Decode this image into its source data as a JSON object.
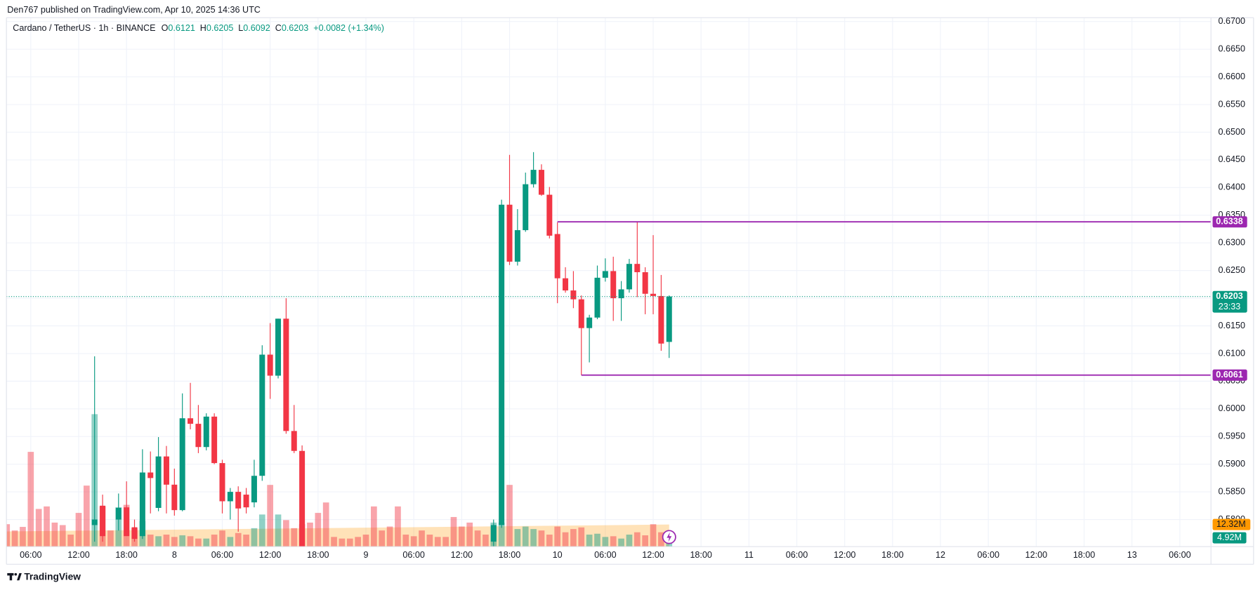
{
  "header": {
    "published": "Den767 published on TradingView.com, Apr 10, 2025 14:36 UTC"
  },
  "footer": {
    "brand": "TradingView"
  },
  "chart_data": {
    "type": "candlestick",
    "legend": {
      "symbol": "Cardano / TetherUS · 1h · BINANCE",
      "letters": [
        "O",
        "H",
        "L",
        "C"
      ],
      "change": "+0.0082 (+1.34%)"
    },
    "up_color": "#089981",
    "down_color": "#f23645",
    "xlim": [
      2.95,
      153.9
    ],
    "xticks": [
      {
        "value": 6,
        "label": "06:00"
      },
      {
        "value": 12,
        "label": "12:00"
      },
      {
        "value": 18,
        "label": "18:00"
      },
      {
        "value": 24,
        "label": "8"
      },
      {
        "value": 30,
        "label": "06:00"
      },
      {
        "value": 36,
        "label": "12:00"
      },
      {
        "value": 42,
        "label": "18:00"
      },
      {
        "value": 48,
        "label": "9"
      },
      {
        "value": 54,
        "label": "06:00"
      },
      {
        "value": 60,
        "label": "12:00"
      },
      {
        "value": 66,
        "label": "18:00"
      },
      {
        "value": 72,
        "label": "10"
      },
      {
        "value": 78,
        "label": "06:00"
      },
      {
        "value": 84,
        "label": "12:00"
      },
      {
        "value": 90,
        "label": "18:00"
      },
      {
        "value": 96,
        "label": "11"
      },
      {
        "value": 102,
        "label": "06:00"
      },
      {
        "value": 108,
        "label": "12:00"
      },
      {
        "value": 114,
        "label": "18:00"
      },
      {
        "value": 120,
        "label": "12"
      },
      {
        "value": 126,
        "label": "06:00"
      },
      {
        "value": 132,
        "label": "12:00"
      },
      {
        "value": 138,
        "label": "18:00"
      },
      {
        "value": 144,
        "label": "13"
      },
      {
        "value": 150,
        "label": "06:00"
      }
    ],
    "ylim": [
      0.5751,
      0.6707
    ],
    "yticks": [
      {
        "value": 0.58,
        "label": "0.5800"
      },
      {
        "value": 0.585,
        "label": "0.5850"
      },
      {
        "value": 0.59,
        "label": "0.5900"
      },
      {
        "value": 0.595,
        "label": "0.5950"
      },
      {
        "value": 0.6,
        "label": "0.6000"
      },
      {
        "value": 0.605,
        "label": "0.6050"
      },
      {
        "value": 0.61,
        "label": "0.6100"
      },
      {
        "value": 0.615,
        "label": "0.6150"
      },
      {
        "value": 0.62,
        "label": "0.6200"
      },
      {
        "value": 0.625,
        "label": "0.6250"
      },
      {
        "value": 0.63,
        "label": "0.6300"
      },
      {
        "value": 0.635,
        "label": "0.6350"
      },
      {
        "value": 0.64,
        "label": "0.6400"
      },
      {
        "value": 0.645,
        "label": "0.6450"
      },
      {
        "value": 0.65,
        "label": "0.6500"
      },
      {
        "value": 0.655,
        "label": "0.6550"
      },
      {
        "value": 0.66,
        "label": "0.6600"
      },
      {
        "value": 0.665,
        "label": "0.6650"
      },
      {
        "value": 0.67,
        "label": "0.6700"
      }
    ],
    "y2lim": [
      0,
      294.7
    ],
    "grid": true,
    "candles": {
      "x": [
        14,
        15,
        17,
        18,
        19,
        20,
        21,
        22,
        23,
        24,
        25,
        26,
        27,
        28,
        29,
        30,
        31,
        32,
        33,
        34,
        35,
        36,
        37,
        38,
        39,
        40,
        64,
        65,
        66,
        67,
        68,
        69,
        70,
        71,
        72,
        73,
        74,
        75,
        76,
        77,
        78,
        79,
        80,
        81,
        82,
        83,
        84,
        85,
        86
      ],
      "open": [
        0.579,
        0.5825,
        0.58,
        0.5822,
        0.5786,
        0.577,
        0.5885,
        0.5821,
        0.5914,
        0.5863,
        0.5817,
        0.5983,
        0.5973,
        0.5931,
        0.5986,
        0.5902,
        0.5833,
        0.585,
        0.5845,
        0.5831,
        0.5879,
        0.6098,
        0.606,
        0.6163,
        0.596,
        0.5924,
        0.576,
        0.579,
        0.6369,
        0.6266,
        0.6323,
        0.6406,
        0.6432,
        0.6387,
        0.6316,
        0.6236,
        0.6214,
        0.6198,
        0.6146,
        0.6165,
        0.6237,
        0.6249,
        0.62,
        0.6216,
        0.6262,
        0.6247,
        0.6208,
        0.6204,
        0.6121
      ],
      "high": [
        0.6095,
        0.5845,
        0.5847,
        0.5869,
        0.58,
        0.5927,
        0.5923,
        0.5949,
        0.5933,
        0.5892,
        0.6028,
        0.6047,
        0.6007,
        0.5992,
        0.5992,
        0.5908,
        0.5857,
        0.586,
        0.5857,
        0.5908,
        0.6115,
        0.6155,
        0.6163,
        0.62,
        0.6007,
        0.5934,
        0.58,
        0.6378,
        0.6459,
        0.6361,
        0.6427,
        0.6464,
        0.6442,
        0.6401,
        0.6337,
        0.6256,
        0.6249,
        0.6205,
        0.617,
        0.6259,
        0.6272,
        0.6275,
        0.6231,
        0.6271,
        0.6338,
        0.6256,
        0.6314,
        0.6242,
        0.6205
      ],
      "low": [
        0.576,
        0.576,
        0.578,
        0.579,
        0.576,
        0.5765,
        0.5811,
        0.5815,
        0.5811,
        0.5807,
        0.5815,
        0.5963,
        0.592,
        0.5925,
        0.59,
        0.5811,
        0.58,
        0.5778,
        0.5811,
        0.5822,
        0.587,
        0.6018,
        0.6055,
        0.5955,
        0.592,
        0.574,
        0.575,
        0.5785,
        0.626,
        0.6259,
        0.632,
        0.64,
        0.6385,
        0.6308,
        0.6191,
        0.621,
        0.6182,
        0.6061,
        0.6084,
        0.6162,
        0.623,
        0.6159,
        0.6159,
        0.621,
        0.6202,
        0.6171,
        0.6171,
        0.6105,
        0.6092
      ],
      "close": [
        0.58,
        0.577,
        0.5821,
        0.577,
        0.5765,
        0.5885,
        0.5875,
        0.5914,
        0.5863,
        0.5817,
        0.5983,
        0.5973,
        0.5931,
        0.5986,
        0.5902,
        0.5833,
        0.585,
        0.582,
        0.5822,
        0.5879,
        0.6098,
        0.606,
        0.6163,
        0.596,
        0.5924,
        0.575,
        0.579,
        0.6369,
        0.6266,
        0.6323,
        0.6406,
        0.6432,
        0.6387,
        0.6313,
        0.6236,
        0.6214,
        0.6198,
        0.6146,
        0.6165,
        0.6237,
        0.6249,
        0.62,
        0.6216,
        0.6262,
        0.6247,
        0.6208,
        0.6204,
        0.6118,
        0.6203
      ],
      "countdown": "23:33"
    },
    "volume": {
      "axis": "y2",
      "up_color": "rgba(8,153,129,0.45)",
      "down_color": "rgba(242,54,69,0.45)",
      "x": [
        3,
        4,
        5,
        6,
        7,
        8,
        9,
        10,
        11,
        12,
        13,
        14,
        15,
        16,
        17,
        18,
        19,
        20,
        21,
        22,
        23,
        24,
        25,
        26,
        27,
        28,
        29,
        30,
        31,
        32,
        33,
        34,
        35,
        36,
        37,
        38,
        39,
        40,
        41,
        42,
        43,
        44,
        45,
        46,
        47,
        48,
        49,
        50,
        51,
        52,
        53,
        54,
        55,
        56,
        57,
        58,
        59,
        60,
        61,
        62,
        63,
        64,
        65,
        66,
        67,
        68,
        69,
        70,
        71,
        72,
        73,
        74,
        75,
        76,
        77,
        78,
        79,
        80,
        81,
        82,
        83,
        84,
        85,
        86
      ],
      "values": [
        12.5,
        9,
        11,
        52.8,
        21,
        22.4,
        13.4,
        12,
        6.7,
        18.8,
        34,
        73.8,
        22.4,
        9,
        22,
        23.3,
        10.3,
        14.3,
        6.7,
        5.8,
        6.7,
        5.4,
        6.3,
        5.8,
        4.5,
        4.5,
        6.7,
        9,
        5.4,
        7.6,
        6.7,
        10.3,
        17.9,
        34.4,
        17.9,
        14.8,
        10.3,
        12.5,
        13.4,
        18.8,
        24.6,
        5.4,
        4.5,
        4.5,
        5.4,
        6.7,
        22.4,
        9,
        11.2,
        22.4,
        6.7,
        5.8,
        9,
        6.7,
        5.4,
        5.4,
        16.5,
        11.2,
        13.4,
        9,
        6.7,
        13.4,
        13.4,
        34.4,
        9.8,
        11.2,
        9.8,
        9,
        6.7,
        11.2,
        8,
        9.8,
        10.7,
        6.7,
        7.2,
        5.4,
        5.8,
        4.5,
        6.7,
        8,
        6.3,
        12.5,
        8,
        4.92
      ],
      "value_labels": [
        null,
        null,
        null,
        null,
        null,
        null,
        null,
        null,
        null,
        null,
        null,
        null,
        null,
        null,
        null,
        null,
        null,
        null,
        null,
        null,
        null,
        null,
        null,
        null,
        null,
        null,
        null,
        null,
        null,
        null,
        null,
        null,
        null,
        null,
        null,
        null,
        null,
        null,
        null,
        null,
        null,
        null,
        null,
        null,
        null,
        null,
        null,
        null,
        null,
        null,
        null,
        null,
        null,
        null,
        null,
        null,
        null,
        null,
        null,
        null,
        null,
        null,
        null,
        null,
        null,
        null,
        null,
        null,
        null,
        null,
        null,
        null,
        null,
        null,
        null,
        null,
        null,
        null,
        null,
        null,
        null,
        null,
        null,
        "4.92M"
      ]
    },
    "volume_ma": {
      "axis": "y2",
      "color": "#ff9800",
      "x": [
        3,
        86
      ],
      "values": [
        8.5,
        12.32
      ],
      "value_labels": [
        null,
        "12.32M"
      ]
    },
    "levels": [
      {
        "value": 0.6338,
        "x": 72,
        "color": "#9c27b0"
      },
      {
        "value": 0.6061,
        "x": 75,
        "color": "#9c27b0"
      }
    ]
  }
}
